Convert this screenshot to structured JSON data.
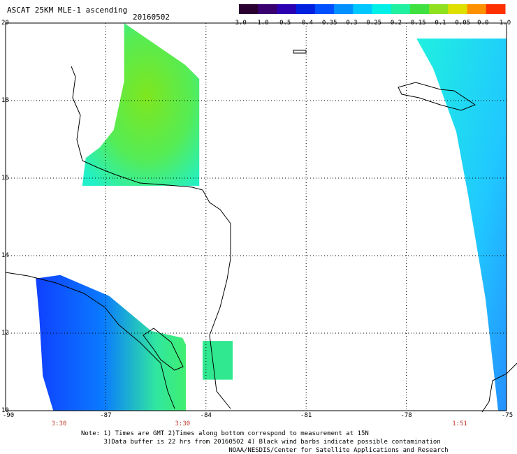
{
  "header": {
    "title": "ASCAT 25KM MLE-1 ascending",
    "date": "20160502"
  },
  "colorbar": {
    "labels": [
      "-3.0",
      "-1.0",
      "-0.5",
      "-0.4",
      "-0.35",
      "-0.3",
      "-0.25",
      "-0.2",
      "-0.15",
      "-0.1",
      "-0.05",
      "0.0",
      "1.0"
    ],
    "colors": [
      "#2a0030",
      "#3a0070",
      "#2c00b0",
      "#0020e0",
      "#0050ff",
      "#0090ff",
      "#00c8ff",
      "#00f0e8",
      "#20f0a0",
      "#40e040",
      "#90e020",
      "#e0e000",
      "#ff9000",
      "#ff3000"
    ]
  },
  "axes": {
    "lat_labels": [
      "20",
      "18",
      "16",
      "14",
      "12",
      "10"
    ],
    "lon_labels": [
      "-90",
      "-87",
      "-84",
      "-81",
      "-78",
      "-75"
    ],
    "time_labels": [
      "3:30",
      "3:30",
      "1:51"
    ]
  },
  "map": {
    "lat_range": [
      10,
      20
    ],
    "lon_range": [
      -90,
      -75
    ],
    "grid_lines": true,
    "swaths": [
      {
        "name": "west-swath-north",
        "lon_range": [
          -87.6,
          -84.2
        ],
        "lat_range": [
          15.8,
          20.0
        ],
        "dominant_value": "-0.15"
      },
      {
        "name": "west-swath-south",
        "lon_range": [
          -89.2,
          -84.6
        ],
        "lat_range": [
          10.0,
          13.5
        ],
        "dominant_value": "-0.3"
      },
      {
        "name": "small-patch",
        "lon_range": [
          -84.1,
          -83.2
        ],
        "lat_range": [
          10.8,
          11.8
        ],
        "dominant_value": "-0.2"
      },
      {
        "name": "east-swath",
        "lon_range": [
          -77.8,
          -75.0
        ],
        "lat_range": [
          10.0,
          19.6
        ],
        "dominant_value": "-0.3"
      }
    ]
  },
  "notes": [
    "Note: 1) Times are GMT 2)Times along bottom correspond to measurement at 15N",
    "      3)Data buffer is 22 hrs from 20160502 4) Black wind barbs indicate possible contamination",
    "                                       NOAA/NESDIS/Center for Satellite Applications and Research"
  ]
}
